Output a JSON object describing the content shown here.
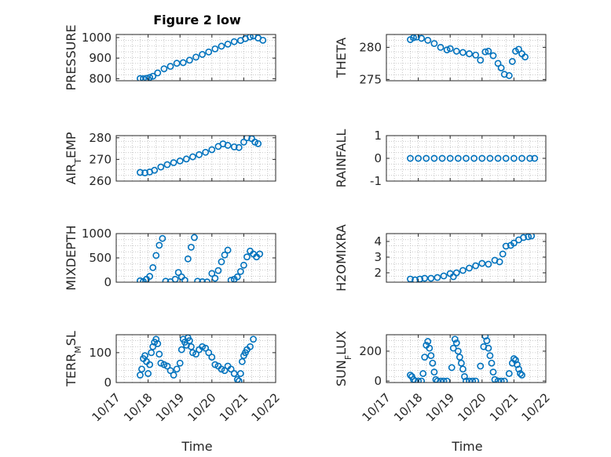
{
  "chart_data": {
    "type": "scatter",
    "title": "Figure 2 low",
    "xlabel": "Time",
    "x_ticks": [
      "10/17",
      "10/18",
      "10/19",
      "10/20",
      "10/21",
      "10/22"
    ],
    "x_range_days": [
      17,
      22
    ],
    "marker": "open-circle",
    "color": "#0072BD",
    "subplots": [
      {
        "ylabel": "PRESSURE",
        "ylim": [
          790,
          1015
        ],
        "yticks": [
          "800",
          "900",
          "1000"
        ],
        "ytick_values": [
          800,
          900,
          1000
        ],
        "points": [
          [
            17.75,
            801
          ],
          [
            17.85,
            800
          ],
          [
            17.95,
            802
          ],
          [
            18.05,
            806
          ],
          [
            18.15,
            812
          ],
          [
            18.3,
            828
          ],
          [
            18.5,
            848
          ],
          [
            18.7,
            860
          ],
          [
            18.9,
            875
          ],
          [
            19.1,
            878
          ],
          [
            19.3,
            890
          ],
          [
            19.5,
            905
          ],
          [
            19.7,
            918
          ],
          [
            19.9,
            930
          ],
          [
            20.1,
            945
          ],
          [
            20.3,
            958
          ],
          [
            20.5,
            968
          ],
          [
            20.7,
            980
          ],
          [
            20.9,
            986
          ],
          [
            21.05,
            995
          ],
          [
            21.2,
            1003
          ],
          [
            21.3,
            1008
          ],
          [
            21.45,
            998
          ],
          [
            21.6,
            987
          ]
        ]
      },
      {
        "ylabel": "THETA",
        "ylim": [
          274.8,
          282
        ],
        "yticks": [
          "275",
          "280"
        ],
        "ytick_values": [
          275,
          280
        ],
        "points": [
          [
            17.75,
            281.2
          ],
          [
            17.85,
            281.5
          ],
          [
            17.95,
            281.6
          ],
          [
            18.1,
            281.4
          ],
          [
            18.3,
            281.1
          ],
          [
            18.5,
            280.6
          ],
          [
            18.7,
            280.0
          ],
          [
            18.9,
            279.6
          ],
          [
            19.0,
            279.8
          ],
          [
            19.2,
            279.4
          ],
          [
            19.4,
            279.2
          ],
          [
            19.6,
            279.0
          ],
          [
            19.8,
            278.8
          ],
          [
            19.95,
            278.0
          ],
          [
            20.1,
            279.3
          ],
          [
            20.2,
            279.4
          ],
          [
            20.35,
            278.7
          ],
          [
            20.5,
            277.5
          ],
          [
            20.6,
            276.8
          ],
          [
            20.7,
            275.8
          ],
          [
            20.85,
            275.6
          ],
          [
            20.95,
            277.8
          ],
          [
            21.05,
            279.4
          ],
          [
            21.15,
            279.7
          ],
          [
            21.25,
            279.0
          ],
          [
            21.35,
            278.5
          ]
        ]
      },
      {
        "ylabel": "AIR_TEMP",
        "ylim": [
          260,
          281
        ],
        "yticks": [
          "260",
          "270",
          "280"
        ],
        "ytick_values": [
          260,
          270,
          280
        ],
        "points": [
          [
            17.75,
            264
          ],
          [
            17.9,
            263.8
          ],
          [
            18.05,
            264.2
          ],
          [
            18.2,
            265
          ],
          [
            18.4,
            266.5
          ],
          [
            18.6,
            267.6
          ],
          [
            18.8,
            268.5
          ],
          [
            19.0,
            269.3
          ],
          [
            19.2,
            270.2
          ],
          [
            19.4,
            271.2
          ],
          [
            19.6,
            272.2
          ],
          [
            19.8,
            273.3
          ],
          [
            20.0,
            274.5
          ],
          [
            20.2,
            276
          ],
          [
            20.35,
            277.2
          ],
          [
            20.5,
            276.5
          ],
          [
            20.7,
            275.8
          ],
          [
            20.85,
            275.5
          ],
          [
            21.0,
            278
          ],
          [
            21.1,
            280
          ],
          [
            21.25,
            279.6
          ],
          [
            21.35,
            278
          ],
          [
            21.45,
            277.3
          ]
        ]
      },
      {
        "ylabel": "RAINFALL",
        "ylim": [
          -1,
          1
        ],
        "yticks": [
          "-1",
          "0",
          "1"
        ],
        "ytick_values": [
          -1,
          0,
          1
        ],
        "points": [
          [
            17.75,
            0
          ],
          [
            18.0,
            0
          ],
          [
            18.25,
            0
          ],
          [
            18.5,
            0
          ],
          [
            18.75,
            0
          ],
          [
            19.0,
            0
          ],
          [
            19.25,
            0
          ],
          [
            19.5,
            0
          ],
          [
            19.75,
            0
          ],
          [
            20.0,
            0
          ],
          [
            20.25,
            0
          ],
          [
            20.5,
            0
          ],
          [
            20.75,
            0
          ],
          [
            21.0,
            0
          ],
          [
            21.25,
            0
          ],
          [
            21.5,
            0
          ],
          [
            21.65,
            0
          ]
        ]
      },
      {
        "ylabel": "MIXDEPTH",
        "ylim": [
          0,
          1000
        ],
        "yticks": [
          "0",
          "500",
          "1000"
        ],
        "ytick_values": [
          0,
          500,
          1000
        ],
        "points": [
          [
            17.75,
            30
          ],
          [
            17.85,
            15
          ],
          [
            17.95,
            60
          ],
          [
            18.05,
            120
          ],
          [
            18.15,
            300
          ],
          [
            18.25,
            550
          ],
          [
            18.35,
            760
          ],
          [
            18.45,
            900
          ],
          [
            18.55,
            20
          ],
          [
            18.7,
            10
          ],
          [
            18.85,
            60
          ],
          [
            18.95,
            200
          ],
          [
            19.05,
            110
          ],
          [
            19.15,
            40
          ],
          [
            19.25,
            480
          ],
          [
            19.35,
            720
          ],
          [
            19.45,
            920
          ],
          [
            19.55,
            20
          ],
          [
            19.7,
            10
          ],
          [
            19.85,
            5
          ],
          [
            20.0,
            180
          ],
          [
            20.1,
            80
          ],
          [
            20.2,
            240
          ],
          [
            20.3,
            420
          ],
          [
            20.4,
            560
          ],
          [
            20.5,
            660
          ],
          [
            20.6,
            40
          ],
          [
            20.7,
            60
          ],
          [
            20.8,
            110
          ],
          [
            20.9,
            220
          ],
          [
            21.0,
            350
          ],
          [
            21.1,
            520
          ],
          [
            21.2,
            640
          ],
          [
            21.3,
            580
          ],
          [
            21.4,
            520
          ],
          [
            21.5,
            580
          ]
        ]
      },
      {
        "ylabel": "H2OMIXRA",
        "ylim": [
          1.4,
          4.5
        ],
        "yticks": [
          "2",
          "3",
          "4"
        ],
        "ytick_values": [
          2,
          3,
          4
        ],
        "points": [
          [
            17.75,
            1.6
          ],
          [
            17.9,
            1.55
          ],
          [
            18.05,
            1.6
          ],
          [
            18.2,
            1.65
          ],
          [
            18.4,
            1.65
          ],
          [
            18.6,
            1.7
          ],
          [
            18.8,
            1.8
          ],
          [
            19.0,
            1.95
          ],
          [
            19.1,
            1.75
          ],
          [
            19.2,
            2.0
          ],
          [
            19.4,
            2.15
          ],
          [
            19.6,
            2.3
          ],
          [
            19.8,
            2.45
          ],
          [
            20.0,
            2.6
          ],
          [
            20.2,
            2.55
          ],
          [
            20.4,
            2.8
          ],
          [
            20.55,
            2.7
          ],
          [
            20.65,
            3.2
          ],
          [
            20.75,
            3.7
          ],
          [
            20.9,
            3.75
          ],
          [
            21.0,
            3.9
          ],
          [
            21.15,
            4.1
          ],
          [
            21.3,
            4.25
          ],
          [
            21.45,
            4.3
          ],
          [
            21.55,
            4.35
          ]
        ]
      },
      {
        "ylabel": "TERR_MSL",
        "ylim": [
          0,
          160
        ],
        "yticks": [
          "0",
          "100"
        ],
        "ytick_values": [
          0,
          100
        ],
        "points": [
          [
            17.75,
            25
          ],
          [
            17.8,
            45
          ],
          [
            17.85,
            80
          ],
          [
            17.9,
            90
          ],
          [
            17.95,
            70
          ],
          [
            18.0,
            30
          ],
          [
            18.05,
            60
          ],
          [
            18.1,
            100
          ],
          [
            18.15,
            120
          ],
          [
            18.2,
            135
          ],
          [
            18.25,
            145
          ],
          [
            18.3,
            130
          ],
          [
            18.35,
            95
          ],
          [
            18.4,
            65
          ],
          [
            18.5,
            60
          ],
          [
            18.6,
            55
          ],
          [
            18.7,
            40
          ],
          [
            18.8,
            25
          ],
          [
            18.9,
            45
          ],
          [
            19.0,
            65
          ],
          [
            19.05,
            110
          ],
          [
            19.1,
            145
          ],
          [
            19.15,
            135
          ],
          [
            19.2,
            125
          ],
          [
            19.25,
            150
          ],
          [
            19.3,
            140
          ],
          [
            19.35,
            120
          ],
          [
            19.4,
            100
          ],
          [
            19.5,
            95
          ],
          [
            19.6,
            110
          ],
          [
            19.7,
            120
          ],
          [
            19.8,
            115
          ],
          [
            19.9,
            100
          ],
          [
            20.0,
            85
          ],
          [
            20.1,
            60
          ],
          [
            20.2,
            55
          ],
          [
            20.3,
            45
          ],
          [
            20.4,
            40
          ],
          [
            20.5,
            55
          ],
          [
            20.6,
            45
          ],
          [
            20.7,
            30
          ],
          [
            20.8,
            10
          ],
          [
            20.85,
            5
          ],
          [
            20.9,
            30
          ],
          [
            20.95,
            70
          ],
          [
            21.0,
            90
          ],
          [
            21.05,
            100
          ],
          [
            21.1,
            110
          ],
          [
            21.2,
            120
          ],
          [
            21.3,
            145
          ]
        ]
      },
      {
        "ylabel": "SUN_FLUX",
        "ylim": [
          -10,
          310
        ],
        "yticks": [
          "0",
          "200"
        ],
        "ytick_values": [
          0,
          200
        ],
        "points": [
          [
            17.75,
            40
          ],
          [
            17.8,
            30
          ],
          [
            17.85,
            10
          ],
          [
            17.9,
            0
          ],
          [
            18.0,
            0
          ],
          [
            18.1,
            0
          ],
          [
            18.15,
            50
          ],
          [
            18.2,
            160
          ],
          [
            18.25,
            240
          ],
          [
            18.3,
            265
          ],
          [
            18.35,
            220
          ],
          [
            18.4,
            170
          ],
          [
            18.45,
            120
          ],
          [
            18.5,
            60
          ],
          [
            18.55,
            10
          ],
          [
            18.6,
            0
          ],
          [
            18.7,
            0
          ],
          [
            18.8,
            0
          ],
          [
            18.9,
            0
          ],
          [
            19.05,
            90
          ],
          [
            19.1,
            220
          ],
          [
            19.15,
            280
          ],
          [
            19.2,
            255
          ],
          [
            19.25,
            200
          ],
          [
            19.3,
            160
          ],
          [
            19.35,
            120
          ],
          [
            19.4,
            80
          ],
          [
            19.45,
            30
          ],
          [
            19.5,
            0
          ],
          [
            19.6,
            0
          ],
          [
            19.7,
            0
          ],
          [
            19.8,
            0
          ],
          [
            19.95,
            100
          ],
          [
            20.05,
            230
          ],
          [
            20.1,
            300
          ],
          [
            20.15,
            270
          ],
          [
            20.2,
            220
          ],
          [
            20.25,
            170
          ],
          [
            20.3,
            120
          ],
          [
            20.35,
            60
          ],
          [
            20.4,
            10
          ],
          [
            20.5,
            0
          ],
          [
            20.6,
            0
          ],
          [
            20.7,
            0
          ],
          [
            20.85,
            50
          ],
          [
            20.95,
            120
          ],
          [
            21.0,
            150
          ],
          [
            21.05,
            140
          ],
          [
            21.1,
            110
          ],
          [
            21.15,
            80
          ],
          [
            21.2,
            50
          ],
          [
            21.25,
            40
          ]
        ]
      }
    ]
  }
}
